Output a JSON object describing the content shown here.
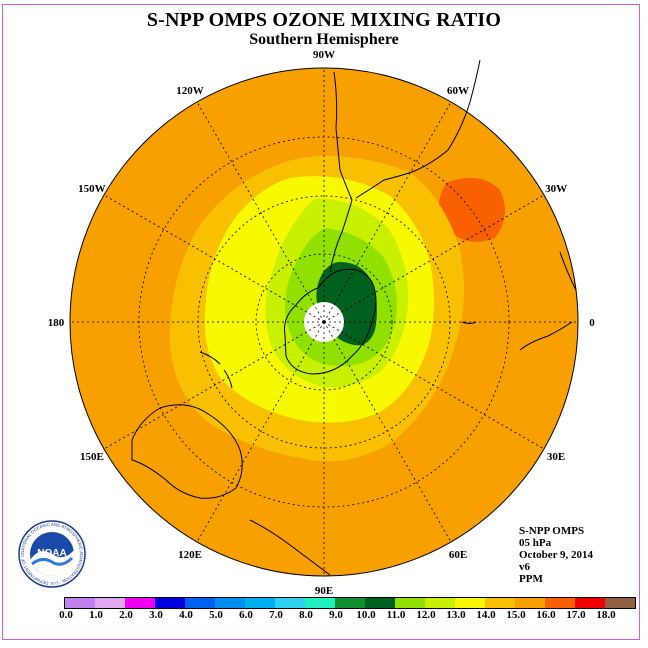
{
  "title": "S-NPP OMPS OZONE MIXING RATIO",
  "subtitle": "Southern Hemisphere",
  "longitude_labels": [
    {
      "text": "90W",
      "angle": 0
    },
    {
      "text": "60W",
      "angle": 30
    },
    {
      "text": "30W",
      "angle": 60
    },
    {
      "text": "0",
      "angle": 90
    },
    {
      "text": "30E",
      "angle": 120
    },
    {
      "text": "60E",
      "angle": 150
    },
    {
      "text": "90E",
      "angle": 180
    },
    {
      "text": "120E",
      "angle": 210
    },
    {
      "text": "150E",
      "angle": 240
    },
    {
      "text": "180",
      "angle": 270
    },
    {
      "text": "150W",
      "angle": 300
    },
    {
      "text": "120W",
      "angle": 330
    }
  ],
  "info_lines": [
    "S-NPP OMPS",
    "05 hPa",
    "October 9, 2014",
    "v6",
    "PPM"
  ],
  "logo_text": "NOAA",
  "logo_ring_text": "NATIONAL OCEANIC AND ATMOSPHERIC ADMINISTRATION · U.S. DEPARTMENT OF COMMERCE",
  "colorbar": {
    "colors": [
      "#c080f0",
      "#e0a8f0",
      "#f000f0",
      "#0000e0",
      "#0060f0",
      "#0090f0",
      "#00b0f0",
      "#30d0f0",
      "#20f0c0",
      "#109030",
      "#006020",
      "#90e000",
      "#c8f000",
      "#f8f800",
      "#f8c000",
      "#f8a000",
      "#f86000",
      "#f00000",
      "#906040"
    ],
    "tick_labels": [
      "0.0",
      "1.0",
      "2.0",
      "3.0",
      "4.0",
      "5.0",
      "6.0",
      "7.0",
      "8.0",
      "9.0",
      "10.0",
      "11.0",
      "12.0",
      "13.0",
      "14.0",
      "15.0",
      "16.0",
      "17.0",
      "18.0"
    ]
  },
  "map_colors": {
    "background": "#f8a000",
    "level_14": "#f8c000",
    "level_13": "#f8f800",
    "level_12": "#c8f000",
    "level_11": "#90e000",
    "level_10": "#006020",
    "level_16": "#f86000",
    "pole": "#ffffff"
  }
}
